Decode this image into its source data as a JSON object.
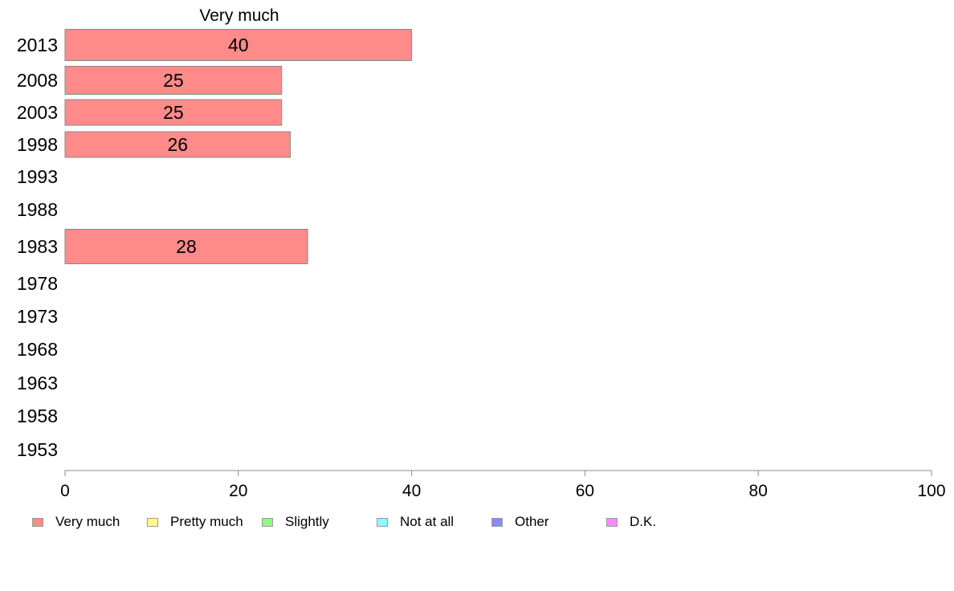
{
  "chart_data": {
    "type": "bar",
    "orientation": "horizontal",
    "title": "Very much",
    "categories": [
      "2013",
      "2008",
      "2003",
      "1998",
      "1993",
      "1988",
      "1983",
      "1978",
      "1973",
      "1968",
      "1963",
      "1958",
      "1953"
    ],
    "series": [
      {
        "name": "Very much",
        "values": [
          40,
          25,
          25,
          26,
          null,
          null,
          28,
          null,
          null,
          null,
          null,
          null,
          null
        ],
        "color": "#ff8a8a"
      }
    ],
    "xlim": [
      0,
      100
    ],
    "xticks": [
      "0",
      "20",
      "40",
      "60",
      "80",
      "100"
    ],
    "grid": false,
    "legend": {
      "placement": "bottom",
      "items": [
        {
          "label": "Very much",
          "color": "#ff8a8a"
        },
        {
          "label": "Pretty much",
          "color": "#ffff88"
        },
        {
          "label": "Slightly",
          "color": "#88ff88"
        },
        {
          "label": "Not at all",
          "color": "#88ffff"
        },
        {
          "label": "Other",
          "color": "#8888ff"
        },
        {
          "label": "D.K.",
          "color": "#ff88ff"
        }
      ]
    }
  }
}
